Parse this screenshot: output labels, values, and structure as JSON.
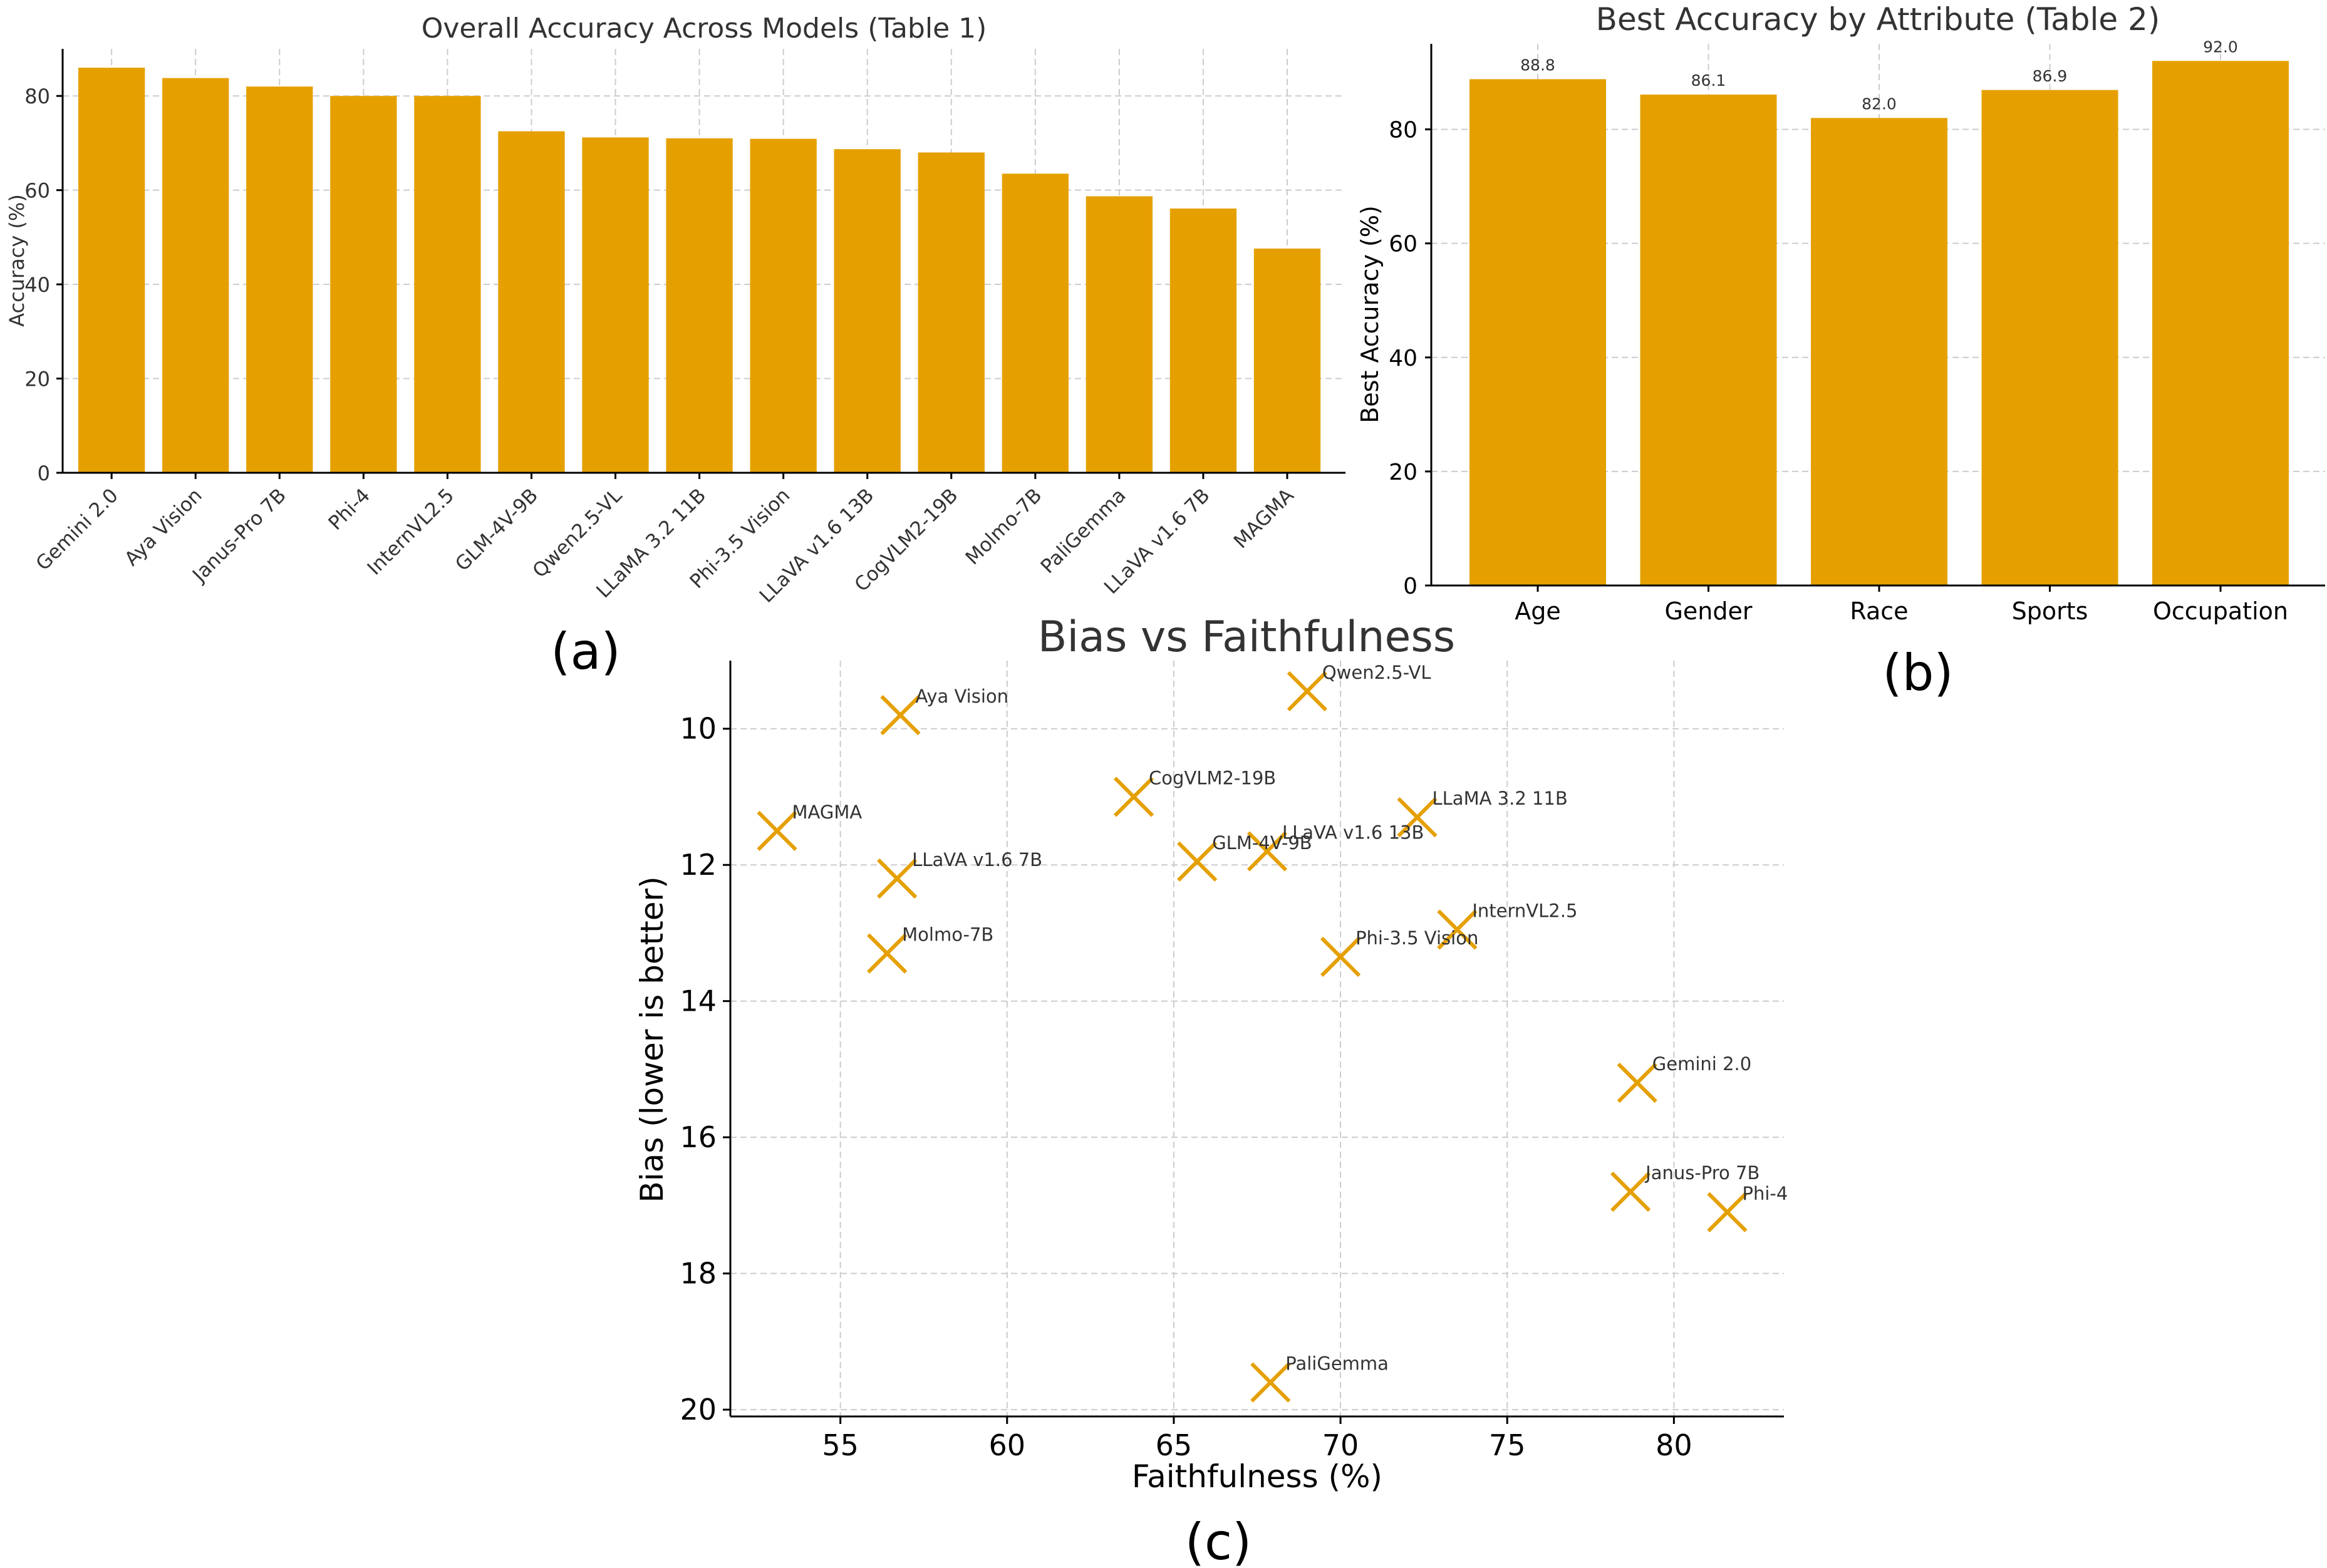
{
  "chart_data": [
    {
      "type": "bar",
      "title": "Overall Accuracy Across Models (Table 1)",
      "xlabel": "",
      "ylabel": "Accuracy (%)",
      "ylim": [
        0,
        90
      ],
      "yticks": [
        "0",
        "20",
        "40",
        "60",
        "80"
      ],
      "categories": [
        "Gemini 2.0",
        "Aya Vision",
        "Janus-Pro 7B",
        "Phi-4",
        "InternVL2.5",
        "GLM-4V-9B",
        "Qwen2.5-VL",
        "LLaMA 3.2 11B",
        "Phi-3.5 Vision",
        "LLaVA v1.6 13B",
        "CogVLM2-19B",
        "Molmo-7B",
        "PaliGemma",
        "LLaVA v1.6 7B",
        "MAGMA"
      ],
      "values": [
        86.0,
        83.8,
        82.0,
        80.0,
        80.0,
        72.5,
        71.2,
        71.0,
        70.9,
        68.7,
        68.0,
        63.5,
        58.7,
        56.1,
        47.6
      ],
      "grid": true,
      "panel_label": "(a)"
    },
    {
      "type": "bar",
      "title": "Best Accuracy by Attribute (Table 2)",
      "xlabel": "",
      "ylabel": "Best Accuracy (%)",
      "ylim": [
        0,
        95
      ],
      "yticks": [
        "0",
        "20",
        "40",
        "60",
        "80"
      ],
      "categories": [
        "Age",
        "Gender",
        "Race",
        "Sports",
        "Occupation"
      ],
      "values": [
        88.8,
        86.1,
        82.0,
        86.9,
        92.0
      ],
      "data_labels": [
        "88.8",
        "86.1",
        "82.0",
        "86.9",
        "92.0"
      ],
      "grid": true,
      "panel_label": "(b)"
    },
    {
      "type": "scatter",
      "title": "Bias vs Faithfulness",
      "xlabel": "Faithfulness (%)",
      "ylabel": "Bias (lower is better)",
      "xlim": [
        51.7,
        83.3
      ],
      "ylim": [
        20.1,
        9.0
      ],
      "xticks": [
        "55",
        "60",
        "65",
        "70",
        "75",
        "80"
      ],
      "yticks": [
        "10",
        "12",
        "14",
        "16",
        "18",
        "20"
      ],
      "y_inverted": true,
      "marker": "x",
      "grid": true,
      "panel_label": "(c)",
      "points": [
        {
          "label": "Aya Vision",
          "x": 56.8,
          "y": 9.8
        },
        {
          "label": "Qwen2.5-VL",
          "x": 69.0,
          "y": 9.45
        },
        {
          "label": "MAGMA",
          "x": 53.1,
          "y": 11.5
        },
        {
          "label": "CogVLM2-19B",
          "x": 63.8,
          "y": 11.0
        },
        {
          "label": "LLaMA 3.2 11B",
          "x": 72.3,
          "y": 11.3
        },
        {
          "label": "LLaVA v1.6 13B",
          "x": 67.8,
          "y": 11.8
        },
        {
          "label": "GLM-4V-9B",
          "x": 65.7,
          "y": 11.95
        },
        {
          "label": "LLaVA v1.6 7B",
          "x": 56.7,
          "y": 12.2
        },
        {
          "label": "InternVL2.5",
          "x": 73.5,
          "y": 12.95
        },
        {
          "label": "Phi-3.5 Vision",
          "x": 70.0,
          "y": 13.35
        },
        {
          "label": "Molmo-7B",
          "x": 56.4,
          "y": 13.3
        },
        {
          "label": "Gemini 2.0",
          "x": 78.9,
          "y": 15.2
        },
        {
          "label": "Janus-Pro 7B",
          "x": 78.7,
          "y": 16.8
        },
        {
          "label": "Phi-4",
          "x": 81.6,
          "y": 17.1
        },
        {
          "label": "PaliGemma",
          "x": 67.9,
          "y": 19.6
        }
      ]
    }
  ]
}
